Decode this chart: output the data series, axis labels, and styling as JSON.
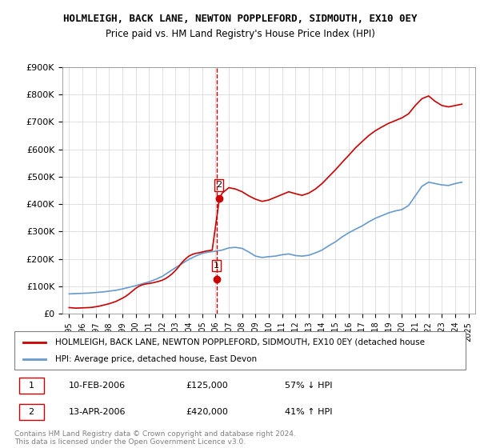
{
  "title": "HOLMLEIGH, BACK LANE, NEWTON POPPLEFORD, SIDMOUTH, EX10 0EY",
  "subtitle": "Price paid vs. HM Land Registry's House Price Index (HPI)",
  "legend_line1": "HOLMLEIGH, BACK LANE, NEWTON POPPLEFORD, SIDMOUTH, EX10 0EY (detached house",
  "legend_line2": "HPI: Average price, detached house, East Devon",
  "footer": "Contains HM Land Registry data © Crown copyright and database right 2024.\nThis data is licensed under the Open Government Licence v3.0.",
  "sale1_label": "1",
  "sale1_date": "10-FEB-2006",
  "sale1_price": "£125,000",
  "sale1_hpi": "57% ↓ HPI",
  "sale2_label": "2",
  "sale2_date": "13-APR-2006",
  "sale2_price": "£420,000",
  "sale2_hpi": "41% ↑ HPI",
  "hpi_color": "#6699cc",
  "price_color": "#cc0000",
  "annotation_color": "#cc0000",
  "dashed_line_color": "#cc0000",
  "ylim": [
    0,
    900000
  ],
  "yticks": [
    0,
    100000,
    200000,
    300000,
    400000,
    500000,
    600000,
    700000,
    800000,
    900000
  ],
  "xlim_start": 1994.5,
  "xlim_end": 2025.5,
  "xticks": [
    1995,
    1996,
    1997,
    1998,
    1999,
    2000,
    2001,
    2002,
    2003,
    2004,
    2005,
    2006,
    2007,
    2008,
    2009,
    2010,
    2011,
    2012,
    2013,
    2014,
    2015,
    2016,
    2017,
    2018,
    2019,
    2020,
    2021,
    2022,
    2023,
    2024,
    2025
  ],
  "sale1_x": 2006.12,
  "sale1_y": 125000,
  "sale2_x": 2006.29,
  "sale2_y": 420000,
  "hpi_years": [
    1995,
    1995.5,
    1996,
    1996.5,
    1997,
    1997.5,
    1998,
    1998.5,
    1999,
    1999.5,
    2000,
    2000.5,
    2001,
    2001.5,
    2002,
    2002.5,
    2003,
    2003.5,
    2004,
    2004.5,
    2005,
    2005.5,
    2006,
    2006.5,
    2007,
    2007.5,
    2008,
    2008.5,
    2009,
    2009.5,
    2010,
    2010.5,
    2011,
    2011.5,
    2012,
    2012.5,
    2013,
    2013.5,
    2014,
    2014.5,
    2015,
    2015.5,
    2016,
    2016.5,
    2017,
    2017.5,
    2018,
    2018.5,
    2019,
    2019.5,
    2020,
    2020.5,
    2021,
    2021.5,
    2022,
    2022.5,
    2023,
    2023.5,
    2024,
    2024.5
  ],
  "hpi_values": [
    72000,
    73000,
    74000,
    75000,
    77000,
    79000,
    82000,
    85000,
    90000,
    96000,
    102000,
    109000,
    116000,
    125000,
    136000,
    152000,
    168000,
    183000,
    198000,
    210000,
    220000,
    225000,
    228000,
    232000,
    240000,
    242000,
    238000,
    225000,
    210000,
    205000,
    208000,
    210000,
    215000,
    218000,
    212000,
    210000,
    213000,
    222000,
    232000,
    248000,
    262000,
    280000,
    295000,
    308000,
    320000,
    335000,
    348000,
    358000,
    368000,
    375000,
    380000,
    395000,
    430000,
    465000,
    480000,
    475000,
    470000,
    468000,
    475000,
    480000
  ],
  "price_years": [
    1995,
    1995.25,
    1995.5,
    1995.75,
    1996,
    1996.25,
    1996.5,
    1996.75,
    1997,
    1997.25,
    1997.5,
    1997.75,
    1998,
    1998.25,
    1998.5,
    1998.75,
    1999,
    1999.25,
    1999.5,
    1999.75,
    2000,
    2000.25,
    2000.5,
    2000.75,
    2001,
    2001.25,
    2001.5,
    2001.75,
    2002,
    2002.25,
    2002.5,
    2002.75,
    2003,
    2003.25,
    2003.5,
    2003.75,
    2004,
    2004.25,
    2004.5,
    2004.75,
    2005,
    2005.25,
    2005.5,
    2005.75,
    2006.29,
    2006.5,
    2007,
    2007.5,
    2008,
    2008.5,
    2009,
    2009.5,
    2010,
    2010.5,
    2011,
    2011.5,
    2012,
    2012.5,
    2013,
    2013.5,
    2014,
    2014.5,
    2015,
    2015.5,
    2016,
    2016.5,
    2017,
    2017.5,
    2018,
    2018.5,
    2019,
    2019.5,
    2020,
    2020.5,
    2021,
    2021.5,
    2022,
    2022.5,
    2023,
    2023.5,
    2024,
    2024.5
  ],
  "price_values": [
    22000,
    21000,
    20000,
    20500,
    21000,
    21500,
    22000,
    23000,
    25000,
    27000,
    30000,
    33000,
    36000,
    40000,
    44000,
    50000,
    56000,
    63000,
    72000,
    82000,
    92000,
    100000,
    105000,
    108000,
    110000,
    112000,
    115000,
    118000,
    122000,
    128000,
    136000,
    146000,
    158000,
    172000,
    188000,
    200000,
    210000,
    216000,
    220000,
    222000,
    225000,
    228000,
    230000,
    232000,
    420000,
    440000,
    460000,
    455000,
    445000,
    430000,
    418000,
    410000,
    415000,
    425000,
    435000,
    445000,
    438000,
    432000,
    440000,
    455000,
    475000,
    500000,
    525000,
    552000,
    578000,
    605000,
    628000,
    650000,
    668000,
    682000,
    695000,
    705000,
    715000,
    730000,
    760000,
    785000,
    795000,
    775000,
    760000,
    755000,
    760000,
    765000
  ]
}
